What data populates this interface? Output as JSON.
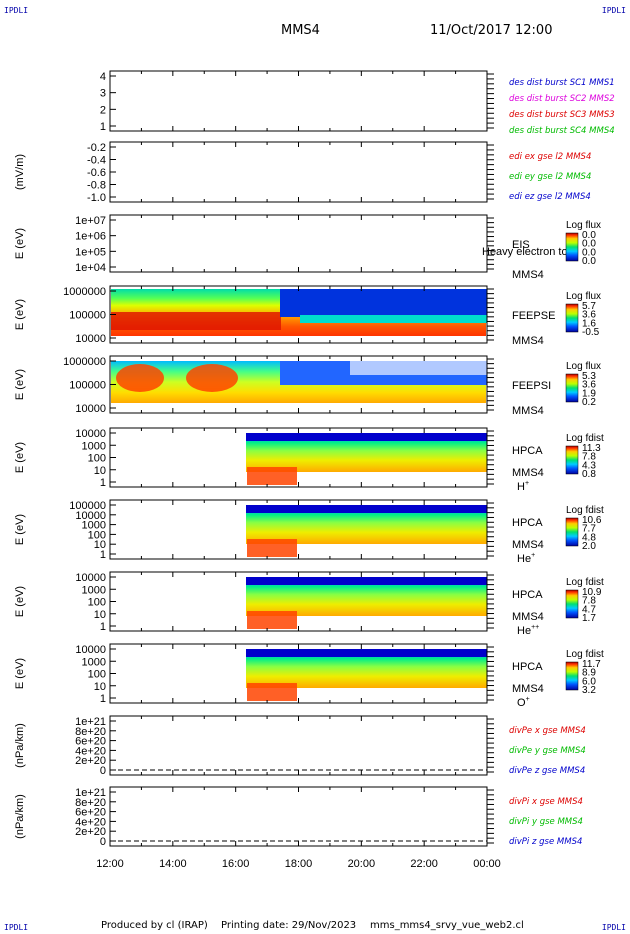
{
  "header": {
    "corner_label": "IPDLI",
    "title": "MMS4",
    "datetime": "11/Oct/2017 12:00"
  },
  "footer": {
    "produced": "Produced by cl (IRAP)",
    "printing": "Printing date: 29/Nov/2023",
    "script": "mms_mms4_srvy_vue_web2.cl"
  },
  "time_axis": {
    "labels": [
      "12:00",
      "14:00",
      "16:00",
      "18:00",
      "20:00",
      "22:00",
      "00:00"
    ]
  },
  "colors": {
    "red": "#dd0000",
    "magenta": "#dd00dd",
    "green": "#00bb00",
    "blue": "#0000cc"
  },
  "chart_data": [
    {
      "type": "line",
      "yticks": [
        "4",
        "3",
        "2",
        "1"
      ],
      "ylim": [
        1,
        4
      ],
      "legend": [
        {
          "text": "des dist burst SC1 MMS1",
          "color": "blue"
        },
        {
          "text": "des dist burst SC2 MMS2",
          "color": "magenta"
        },
        {
          "text": "des dist burst SC3 MMS3",
          "color": "red"
        },
        {
          "text": "des dist burst SC4 MMS4",
          "color": "green"
        }
      ]
    },
    {
      "type": "line",
      "ylabel": "(mV/m)",
      "yticks": [
        "-0.2",
        "-0.4",
        "-0.6",
        "-0.8",
        "-1.0"
      ],
      "ylim": [
        -1.0,
        -0.1
      ],
      "legend": [
        {
          "text": "edi ex gse l2 MMS4",
          "color": "red"
        },
        {
          "text": "edi ey gse l2 MMS4",
          "color": "green"
        },
        {
          "text": "edi ez gse l2 MMS4",
          "color": "blue"
        }
      ]
    },
    {
      "type": "heatmap",
      "ylabel": "E (eV)",
      "yticks": [
        "1e+07",
        "1e+06",
        "1e+05",
        "1e+04"
      ],
      "right_labels": [
        "EIS",
        "MMS4"
      ],
      "extra_label": "Heavy electron tof",
      "colorbar": {
        "title": "Log flux",
        "ticks": [
          "0.0",
          "0.0",
          "0.0",
          "0.0"
        ]
      }
    },
    {
      "type": "heatmap",
      "ylabel": "E (eV)",
      "yticks": [
        "1000000",
        "100000",
        "10000"
      ],
      "right_labels": [
        "FEEPSE",
        "MMS4"
      ],
      "colorbar": {
        "title": "Log flux",
        "ticks": [
          "5.7",
          "3.6",
          "1.6",
          "-0.5"
        ]
      }
    },
    {
      "type": "heatmap",
      "ylabel": "E (eV)",
      "yticks": [
        "1000000",
        "100000",
        "10000"
      ],
      "right_labels": [
        "FEEPSI",
        "MMS4"
      ],
      "colorbar": {
        "title": "Log flux",
        "ticks": [
          "5.3",
          "3.6",
          "1.9",
          "0.2"
        ]
      }
    },
    {
      "type": "heatmap",
      "ylabel": "E (eV)",
      "yticks": [
        "10000",
        "1000",
        "100",
        "10",
        "1"
      ],
      "right_labels": [
        "HPCA",
        "MMS4"
      ],
      "species": "H",
      "species_sup": "+",
      "colorbar": {
        "title": "Log fdist",
        "ticks": [
          "11.3",
          "7.8",
          "4.3",
          "0.8"
        ]
      }
    },
    {
      "type": "heatmap",
      "ylabel": "E (eV)",
      "yticks": [
        "100000",
        "10000",
        "1000",
        "100",
        "10",
        "1"
      ],
      "right_labels": [
        "HPCA",
        "MMS4"
      ],
      "species": "He",
      "species_sup": "+",
      "colorbar": {
        "title": "Log fdist",
        "ticks": [
          "10.6",
          "7.7",
          "4.8",
          "2.0"
        ]
      }
    },
    {
      "type": "heatmap",
      "ylabel": "E (eV)",
      "yticks": [
        "10000",
        "1000",
        "100",
        "10",
        "1"
      ],
      "right_labels": [
        "HPCA",
        "MMS4"
      ],
      "species": "He",
      "species_sup": "++",
      "colorbar": {
        "title": "Log fdist",
        "ticks": [
          "10.9",
          "7.8",
          "4.7",
          "1.7"
        ]
      }
    },
    {
      "type": "heatmap",
      "ylabel": "E (eV)",
      "yticks": [
        "10000",
        "1000",
        "100",
        "10",
        "1"
      ],
      "right_labels": [
        "HPCA",
        "MMS4"
      ],
      "species": "O",
      "species_sup": "+",
      "colorbar": {
        "title": "Log fdist",
        "ticks": [
          "11.7",
          "8.9",
          "6.0",
          "3.2"
        ]
      }
    },
    {
      "type": "line",
      "ylabel": "(nPa/km)",
      "yticks": [
        "1e+21",
        "8e+20",
        "6e+20",
        "4e+20",
        "2e+20",
        "0"
      ],
      "ylim": [
        0,
        1e+21
      ],
      "legend": [
        {
          "text": "divPe x gse MMS4",
          "color": "red"
        },
        {
          "text": "divPe y gse MMS4",
          "color": "green"
        },
        {
          "text": "divPe z gse MMS4",
          "color": "blue"
        }
      ]
    },
    {
      "type": "line",
      "ylabel": "(nPa/km)",
      "yticks": [
        "1e+21",
        "8e+20",
        "6e+20",
        "4e+20",
        "2e+20",
        "0"
      ],
      "ylim": [
        0,
        1e+21
      ],
      "legend": [
        {
          "text": "divPi x gse MMS4",
          "color": "red"
        },
        {
          "text": "divPi y gse MMS4",
          "color": "green"
        },
        {
          "text": "divPi z gse MMS4",
          "color": "blue"
        }
      ]
    }
  ]
}
